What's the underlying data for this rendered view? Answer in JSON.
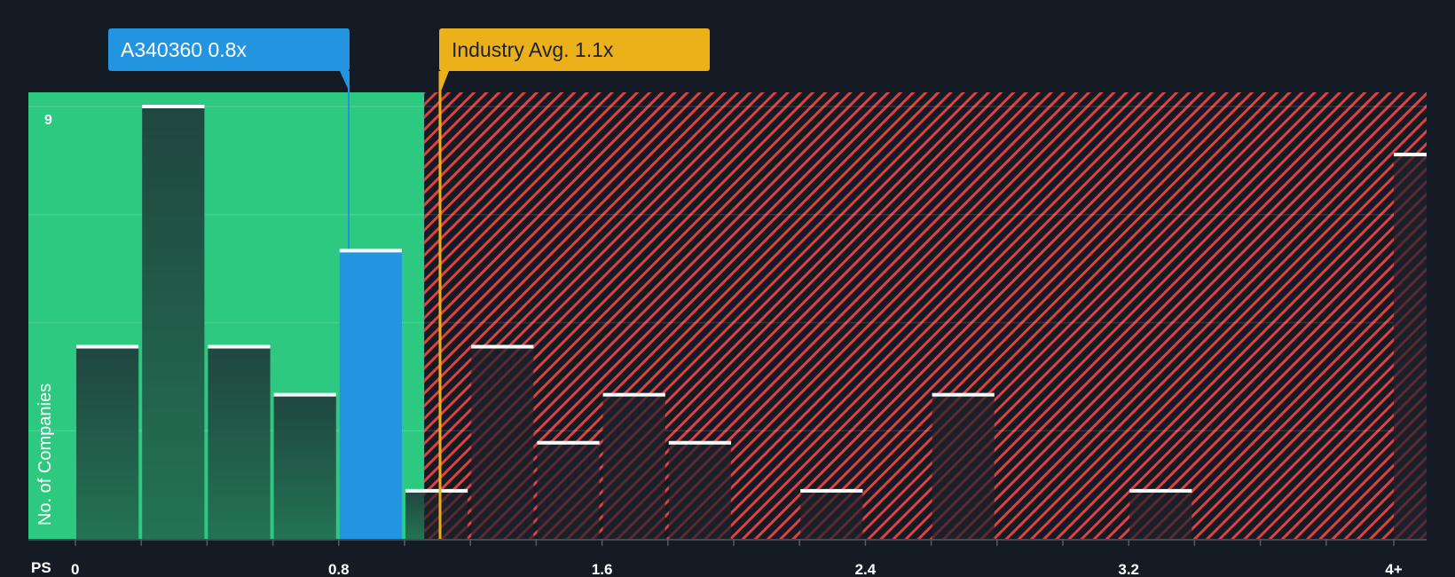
{
  "callouts": {
    "company": {
      "label": "A340360 0.8x",
      "value": 0.85,
      "color": "#2394e0"
    },
    "industry": {
      "label": "Industry Avg. 1.1x",
      "value": 1.12,
      "color": "#ecb11a"
    }
  },
  "axes": {
    "x_title": "PS",
    "y_title": "No. of Companies",
    "y_tick_label": "9",
    "x_tick_labels": [
      "0",
      "0.8",
      "1.6",
      "2.4",
      "3.2",
      "4+"
    ]
  },
  "colors": {
    "background": "#151b24",
    "undervalued_zone": "#2ec980",
    "overvalued_hatch": "#e0413f",
    "bar_dark": "#214a40",
    "bar_highlight": "#2394e0",
    "bar_cap": "#ffffff"
  },
  "chart_data": {
    "type": "bar",
    "title": "",
    "xlabel": "PS",
    "ylabel": "No. of Companies",
    "ylim": [
      0,
      9
    ],
    "x_ticks": [
      "0",
      "0.8",
      "1.6",
      "2.4",
      "3.2",
      "4+"
    ],
    "bin_width": 0.2,
    "categories": [
      "0-0.2",
      "0.2-0.4",
      "0.4-0.6",
      "0.6-0.8",
      "0.8-1.0",
      "1.0-1.2",
      "1.2-1.4",
      "1.4-1.6",
      "1.6-1.8",
      "1.8-2.0",
      "2.0-2.2",
      "2.2-2.4",
      "2.4-2.6",
      "2.6-2.8",
      "2.8-3.0",
      "3.0-3.2",
      "3.2-3.4",
      "3.4-3.6",
      "3.6-3.8",
      "3.8-4.0",
      "4+"
    ],
    "values": [
      4,
      9,
      4,
      3,
      6,
      1,
      4,
      2,
      3,
      2,
      0,
      1,
      0,
      3,
      0,
      0,
      1,
      0,
      0,
      0,
      8
    ],
    "highlight_bin": "0.8-1.0",
    "annotations": [
      {
        "label": "A340360 0.8x",
        "x": 0.85
      },
      {
        "label": "Industry Avg. 1.1x",
        "x": 1.12
      }
    ],
    "zones": [
      {
        "name": "undervalued",
        "from": 0,
        "to": 1.06,
        "color": "#2ec980"
      },
      {
        "name": "overvalued",
        "from": 1.06,
        "to": 4.2,
        "color": "#e0413f",
        "pattern": "hatch"
      }
    ],
    "grid": true,
    "gridlines_y": [
      2.25,
      4.5,
      6.75,
      9
    ]
  }
}
